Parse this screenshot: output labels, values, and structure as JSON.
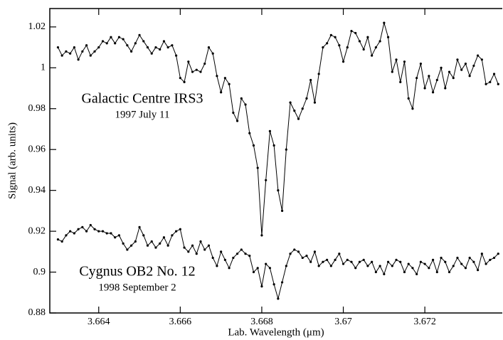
{
  "chart_data": {
    "type": "line",
    "xlabel": "Lab. Wavelength (μm)",
    "ylabel": "Signal (arb. units)",
    "x": [
      3.663,
      3.6631,
      3.6632,
      3.6633,
      3.6634,
      3.6635,
      3.6636,
      3.6637,
      3.6638,
      3.6639,
      3.664,
      3.6641,
      3.6642,
      3.6643,
      3.6644,
      3.6645,
      3.6646,
      3.6647,
      3.6648,
      3.6649,
      3.665,
      3.6651,
      3.6652,
      3.6653,
      3.6654,
      3.6655,
      3.6656,
      3.6657,
      3.6658,
      3.6659,
      3.666,
      3.6661,
      3.6662,
      3.6663,
      3.6664,
      3.6665,
      3.6666,
      3.6667,
      3.6668,
      3.6669,
      3.667,
      3.6671,
      3.6672,
      3.6673,
      3.6674,
      3.6675,
      3.6676,
      3.6677,
      3.6678,
      3.6679,
      3.668,
      3.6681,
      3.6682,
      3.6683,
      3.6684,
      3.6685,
      3.6686,
      3.6687,
      3.6688,
      3.6689,
      3.669,
      3.6691,
      3.6692,
      3.6693,
      3.6694,
      3.6695,
      3.6696,
      3.6697,
      3.6698,
      3.6699,
      3.67,
      3.6701,
      3.6702,
      3.6703,
      3.6704,
      3.6705,
      3.6706,
      3.6707,
      3.6708,
      3.6709,
      3.671,
      3.6711,
      3.6712,
      3.6713,
      3.6714,
      3.6715,
      3.6716,
      3.6717,
      3.6718,
      3.6719,
      3.672,
      3.6721,
      3.6722,
      3.6723,
      3.6724,
      3.6725,
      3.6726,
      3.6727,
      3.6728,
      3.6729,
      3.673,
      3.6731,
      3.6732,
      3.6733,
      3.6734,
      3.6735,
      3.6736,
      3.6737,
      3.6738
    ],
    "series": [
      {
        "name": "Galactic Centre IRS3",
        "color": "#000000",
        "annotation": "1997 July 11",
        "values": [
          1.01,
          1.006,
          1.008,
          1.007,
          1.01,
          1.004,
          1.008,
          1.011,
          1.006,
          1.008,
          1.01,
          1.013,
          1.012,
          1.015,
          1.012,
          1.015,
          1.014,
          1.011,
          1.008,
          1.012,
          1.016,
          1.013,
          1.01,
          1.007,
          1.01,
          1.009,
          1.013,
          1.01,
          1.011,
          1.006,
          0.995,
          0.993,
          1.003,
          0.998,
          0.999,
          0.998,
          1.002,
          1.01,
          1.007,
          0.996,
          0.988,
          0.995,
          0.992,
          0.978,
          0.974,
          0.985,
          0.982,
          0.968,
          0.962,
          0.951,
          0.918,
          0.945,
          0.969,
          0.962,
          0.94,
          0.93,
          0.96,
          0.983,
          0.979,
          0.975,
          0.98,
          0.985,
          0.994,
          0.983,
          0.997,
          1.01,
          1.012,
          1.016,
          1.015,
          1.011,
          1.003,
          1.01,
          1.018,
          1.017,
          1.013,
          1.009,
          1.015,
          1.006,
          1.01,
          1.013,
          1.022,
          1.015,
          0.998,
          1.004,
          0.993,
          1.003,
          0.985,
          0.98,
          0.995,
          1.002,
          0.99,
          0.996,
          0.988,
          0.994,
          1.0,
          0.99,
          0.998,
          0.995,
          1.004,
          0.999,
          1.002,
          0.996,
          1.001,
          1.006,
          1.004,
          0.992,
          0.993,
          0.997,
          0.992
        ]
      },
      {
        "name": "Cygnus OB2 No. 12",
        "color": "#000000",
        "annotation": "1998 September 2",
        "values": [
          0.916,
          0.915,
          0.918,
          0.92,
          0.919,
          0.921,
          0.922,
          0.92,
          0.923,
          0.921,
          0.92,
          0.92,
          0.919,
          0.919,
          0.917,
          0.918,
          0.914,
          0.911,
          0.913,
          0.915,
          0.922,
          0.918,
          0.913,
          0.915,
          0.912,
          0.914,
          0.917,
          0.913,
          0.918,
          0.92,
          0.921,
          0.912,
          0.91,
          0.913,
          0.909,
          0.915,
          0.911,
          0.913,
          0.907,
          0.903,
          0.91,
          0.906,
          0.902,
          0.907,
          0.909,
          0.911,
          0.909,
          0.908,
          0.9,
          0.902,
          0.893,
          0.904,
          0.902,
          0.894,
          0.887,
          0.895,
          0.903,
          0.909,
          0.911,
          0.91,
          0.907,
          0.908,
          0.905,
          0.91,
          0.903,
          0.905,
          0.906,
          0.903,
          0.906,
          0.909,
          0.904,
          0.906,
          0.905,
          0.902,
          0.905,
          0.906,
          0.903,
          0.905,
          0.9,
          0.903,
          0.899,
          0.905,
          0.903,
          0.906,
          0.905,
          0.9,
          0.904,
          0.902,
          0.899,
          0.905,
          0.904,
          0.902,
          0.906,
          0.9,
          0.907,
          0.905,
          0.9,
          0.903,
          0.907,
          0.904,
          0.902,
          0.907,
          0.905,
          0.901,
          0.909,
          0.904,
          0.906,
          0.907,
          0.909
        ]
      }
    ],
    "xlim": [
      3.6628,
      3.6739
    ],
    "ylim": [
      0.88,
      1.029
    ],
    "xticks": [
      3.664,
      3.666,
      3.668,
      3.67,
      3.672
    ],
    "yticks": [
      0.88,
      0.9,
      0.92,
      0.94,
      0.96,
      0.98,
      1,
      1.02
    ],
    "grid": false,
    "markers": true
  }
}
